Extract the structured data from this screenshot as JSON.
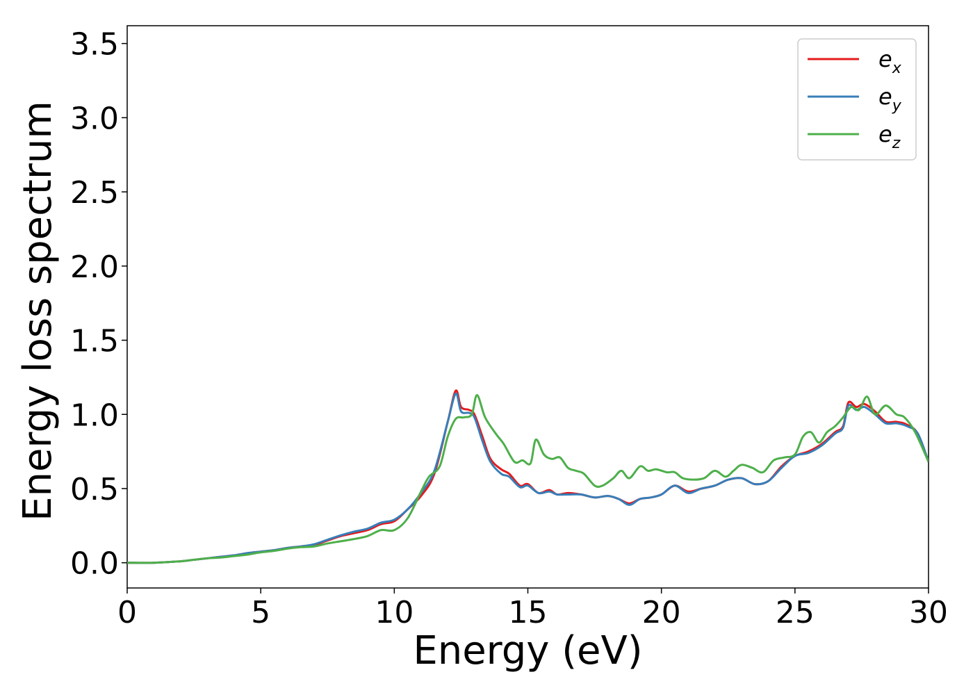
{
  "chart_data": {
    "type": "line",
    "title": "",
    "xlabel": "Energy (eV)",
    "ylabel": "Energy loss spectrum",
    "xlim": [
      0,
      30
    ],
    "ylim": [
      -0.17,
      3.62
    ],
    "xticks": [
      "0",
      "5",
      "10",
      "15",
      "20",
      "25",
      "30"
    ],
    "xtick_values": [
      0,
      5,
      10,
      15,
      20,
      25,
      30
    ],
    "yticks": [
      "0.0",
      "0.5",
      "1.0",
      "1.5",
      "2.0",
      "2.5",
      "3.0",
      "3.5"
    ],
    "ytick_values": [
      0,
      0.5,
      1.0,
      1.5,
      2.0,
      2.5,
      3.0,
      3.5
    ],
    "grid": false,
    "legend_position": "top-right",
    "series": [
      {
        "name": "e_x",
        "legend_base": "e",
        "legend_sub": "x",
        "color": "#e41a1c",
        "x": [
          0,
          1,
          2,
          2.5,
          3,
          3.5,
          4,
          4.5,
          5,
          5.5,
          6,
          6.5,
          7,
          7.5,
          8,
          8.5,
          9,
          9.5,
          10,
          10.5,
          11,
          11.5,
          12,
          12.3,
          12.5,
          12.8,
          13,
          13.3,
          13.6,
          14,
          14.3,
          14.7,
          15,
          15.4,
          15.8,
          16.1,
          16.5,
          17,
          17.5,
          18,
          18.4,
          18.8,
          19.2,
          19.6,
          20,
          20.5,
          21,
          21.5,
          22,
          22.5,
          23,
          23.5,
          24,
          24.5,
          25,
          25.5,
          26,
          26.5,
          26.8,
          27,
          27.3,
          27.6,
          28,
          28.4,
          28.8,
          29.2,
          29.6,
          30
        ],
        "values": [
          0,
          0.0,
          0.01,
          0.02,
          0.03,
          0.04,
          0.05,
          0.065,
          0.075,
          0.085,
          0.1,
          0.11,
          0.12,
          0.15,
          0.18,
          0.2,
          0.22,
          0.26,
          0.28,
          0.36,
          0.45,
          0.6,
          0.95,
          1.16,
          1.05,
          1.03,
          1.0,
          0.85,
          0.7,
          0.63,
          0.6,
          0.52,
          0.53,
          0.47,
          0.49,
          0.46,
          0.47,
          0.46,
          0.44,
          0.45,
          0.43,
          0.4,
          0.43,
          0.44,
          0.46,
          0.52,
          0.48,
          0.5,
          0.52,
          0.56,
          0.57,
          0.53,
          0.55,
          0.65,
          0.72,
          0.75,
          0.8,
          0.88,
          0.92,
          1.08,
          1.05,
          1.07,
          1.02,
          0.95,
          0.95,
          0.93,
          0.87,
          0.68
        ]
      },
      {
        "name": "e_y",
        "legend_base": "e",
        "legend_sub": "y",
        "color": "#377eb8",
        "x": [
          0,
          1,
          2,
          2.5,
          3,
          3.5,
          4,
          4.5,
          5,
          5.5,
          6,
          6.5,
          7,
          7.5,
          8,
          8.5,
          9,
          9.5,
          10,
          10.5,
          11,
          11.5,
          12,
          12.3,
          12.5,
          12.8,
          13,
          13.3,
          13.6,
          14,
          14.3,
          14.7,
          15,
          15.4,
          15.8,
          16.1,
          16.5,
          17,
          17.5,
          18,
          18.4,
          18.8,
          19.2,
          19.6,
          20,
          20.5,
          21,
          21.5,
          22,
          22.5,
          23,
          23.5,
          24,
          24.5,
          25,
          25.5,
          26,
          26.5,
          26.8,
          27,
          27.3,
          27.6,
          28,
          28.4,
          28.8,
          29.2,
          29.6,
          30
        ],
        "values": [
          0,
          0.0,
          0.01,
          0.02,
          0.03,
          0.04,
          0.05,
          0.065,
          0.075,
          0.085,
          0.1,
          0.11,
          0.125,
          0.155,
          0.185,
          0.21,
          0.23,
          0.27,
          0.29,
          0.36,
          0.47,
          0.62,
          0.95,
          1.14,
          1.02,
          1.01,
          0.98,
          0.82,
          0.68,
          0.6,
          0.58,
          0.51,
          0.52,
          0.47,
          0.48,
          0.46,
          0.46,
          0.46,
          0.44,
          0.45,
          0.43,
          0.39,
          0.43,
          0.44,
          0.46,
          0.52,
          0.47,
          0.5,
          0.52,
          0.56,
          0.57,
          0.53,
          0.55,
          0.64,
          0.72,
          0.74,
          0.79,
          0.87,
          0.91,
          1.06,
          1.03,
          1.05,
          1.0,
          0.94,
          0.94,
          0.92,
          0.87,
          0.68
        ]
      },
      {
        "name": "e_z",
        "legend_base": "e",
        "legend_sub": "z",
        "color": "#4daf4a",
        "x": [
          0,
          1,
          2,
          2.5,
          3,
          3.5,
          4,
          4.5,
          5,
          5.5,
          6,
          6.5,
          7,
          7.5,
          8,
          8.5,
          9,
          9.5,
          10,
          10.5,
          11,
          11.3,
          11.7,
          12,
          12.3,
          12.6,
          12.9,
          13.1,
          13.4,
          13.8,
          14.1,
          14.5,
          14.8,
          15.1,
          15.3,
          15.6,
          15.9,
          16.2,
          16.5,
          16.8,
          17.1,
          17.5,
          17.8,
          18.2,
          18.5,
          18.8,
          19.2,
          19.5,
          19.8,
          20.2,
          20.5,
          20.8,
          21.2,
          21.6,
          22,
          22.4,
          22.7,
          23,
          23.4,
          23.8,
          24.2,
          24.6,
          25,
          25.3,
          25.6,
          25.9,
          26.2,
          26.5,
          26.8,
          27.1,
          27.4,
          27.7,
          28,
          28.4,
          28.8,
          29.1,
          29.5,
          30
        ],
        "values": [
          0,
          0.0,
          0.01,
          0.02,
          0.03,
          0.035,
          0.045,
          0.055,
          0.07,
          0.08,
          0.095,
          0.105,
          0.11,
          0.13,
          0.145,
          0.16,
          0.18,
          0.22,
          0.22,
          0.3,
          0.48,
          0.58,
          0.65,
          0.85,
          0.97,
          0.98,
          1.0,
          1.13,
          0.98,
          0.87,
          0.8,
          0.68,
          0.69,
          0.67,
          0.83,
          0.73,
          0.7,
          0.71,
          0.64,
          0.62,
          0.6,
          0.52,
          0.52,
          0.57,
          0.62,
          0.57,
          0.65,
          0.62,
          0.63,
          0.61,
          0.61,
          0.57,
          0.56,
          0.57,
          0.62,
          0.58,
          0.62,
          0.66,
          0.64,
          0.61,
          0.69,
          0.71,
          0.73,
          0.85,
          0.88,
          0.81,
          0.88,
          0.92,
          0.98,
          1.05,
          1.03,
          1.12,
          1.0,
          1.06,
          1.0,
          0.98,
          0.88,
          0.68
        ]
      }
    ]
  }
}
